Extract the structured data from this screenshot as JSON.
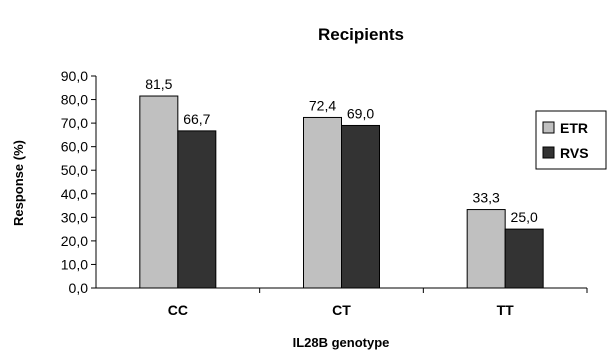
{
  "chart_data": {
    "type": "bar",
    "title": "Recipients",
    "xlabel": "IL28B genotype",
    "ylabel": "Response (%)",
    "categories": [
      "CC",
      "CT",
      "TT"
    ],
    "series": [
      {
        "name": "ETR",
        "values": [
          81.5,
          72.4,
          33.3
        ],
        "labels": [
          "81,5",
          "72,4",
          "33,3"
        ],
        "color": "#c0c0c0"
      },
      {
        "name": "RVS",
        "values": [
          66.7,
          69.0,
          25.0
        ],
        "labels": [
          "66,7",
          "69,0",
          "25,0"
        ],
        "color": "#333333"
      }
    ],
    "ylim": [
      0,
      90
    ],
    "yticks": [
      0,
      10,
      20,
      30,
      40,
      50,
      60,
      70,
      80,
      90
    ],
    "ytick_labels": [
      "0,0",
      "10,0",
      "20,0",
      "30,0",
      "40,0",
      "50,0",
      "60,0",
      "70,0",
      "80,0",
      "90,0"
    ],
    "grid": false,
    "legend_position": "right"
  }
}
